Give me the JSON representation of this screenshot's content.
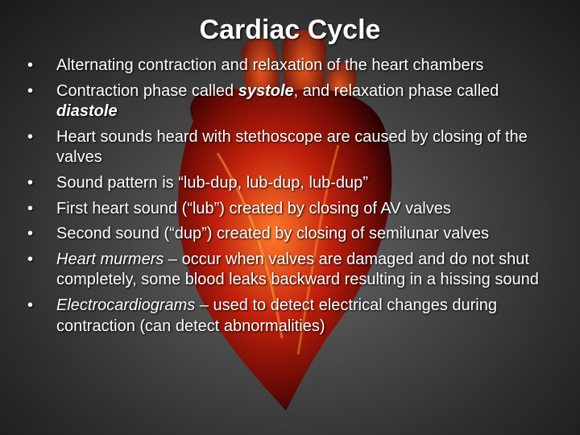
{
  "title": "Cardiac Cycle",
  "bullets": [
    [
      {
        "text": "Alternating contraction and relaxation of the heart chambers",
        "style": "normal"
      }
    ],
    [
      {
        "text": "Contraction phase called ",
        "style": "normal"
      },
      {
        "text": "systole",
        "style": "bold-italic"
      },
      {
        "text": ", and relaxation phase called ",
        "style": "normal"
      },
      {
        "text": "diastole",
        "style": "bold-italic"
      }
    ],
    [
      {
        "text": "Heart sounds heard with stethoscope are caused by closing of the valves",
        "style": "normal"
      }
    ],
    [
      {
        "text": "Sound pattern is “lub-dup, lub-dup, lub-dup”",
        "style": "normal"
      }
    ],
    [
      {
        "text": "First heart sound (“lub”) created by closing of AV valves",
        "style": "normal"
      }
    ],
    [
      {
        "text": "Second sound (“dup”) created by closing of semilunar valves",
        "style": "normal"
      }
    ],
    [
      {
        "text": "Heart murmers",
        "style": "italic"
      },
      {
        "text": " – occur when valves are damaged and do not shut completely, some blood leaks backward resulting in a hissing sound",
        "style": "normal"
      }
    ],
    [
      {
        "text": "Electrocardiograms",
        "style": "italic"
      },
      {
        "text": " – used to detect electrical changes during contraction (can detect abnormalities)",
        "style": "normal"
      }
    ]
  ]
}
